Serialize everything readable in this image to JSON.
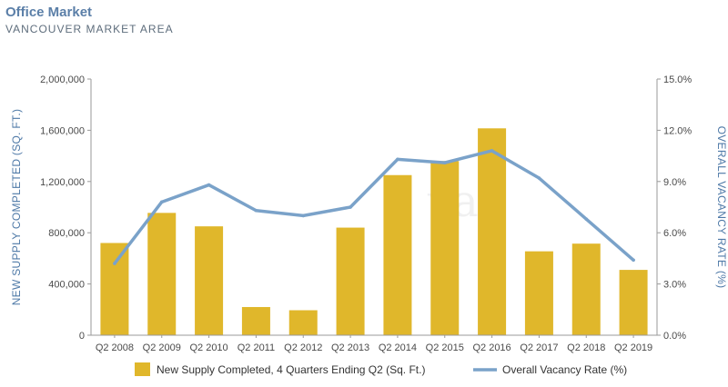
{
  "header": {
    "title": "Office Market",
    "subtitle": "VANCOUVER MARKET AREA"
  },
  "watermark": "van",
  "colors": {
    "bar": "#e0b72b",
    "line": "#7aa2c9",
    "axis_label": "#4e79a7"
  },
  "chart_data": {
    "type": "bar",
    "categories": [
      "Q2 2008",
      "Q2 2009",
      "Q2 2010",
      "Q2 2011",
      "Q2 2012",
      "Q2 2013",
      "Q2 2014",
      "Q2 2015",
      "Q2 2016",
      "Q2 2017",
      "Q2 2018",
      "Q2 2019"
    ],
    "series": [
      {
        "name": "New Supply Completed, 4 Quarters Ending Q2 (Sq. Ft.)",
        "type": "bar",
        "axis": "left",
        "values": [
          720000,
          955000,
          850000,
          220000,
          195000,
          840000,
          1250000,
          1360000,
          1615000,
          655000,
          715000,
          510000
        ]
      },
      {
        "name": "Overall Vacancy Rate (%)",
        "type": "line",
        "axis": "right",
        "values": [
          4.2,
          7.8,
          8.8,
          7.3,
          7.0,
          7.5,
          10.3,
          10.1,
          10.8,
          9.2,
          6.8,
          4.4
        ]
      }
    ],
    "y_left": {
      "label": "NEW SUPPLY COMPLETED (SQ. FT.)",
      "min": 0,
      "max": 2000000,
      "ticks": [
        "0",
        "400,000",
        "800,000",
        "1,200,000",
        "1,600,000",
        "2,000,000"
      ],
      "tick_values": [
        0,
        400000,
        800000,
        1200000,
        1600000,
        2000000
      ]
    },
    "y_right": {
      "label": "OVERALL VACANCY RATE (%)",
      "min": 0,
      "max": 15,
      "ticks": [
        "0.0%",
        "3.0%",
        "6.0%",
        "9.0%",
        "12.0%",
        "15.0%"
      ],
      "tick_values": [
        0,
        3,
        6,
        9,
        12,
        15
      ]
    },
    "legend": {
      "placement": "bottom"
    }
  }
}
